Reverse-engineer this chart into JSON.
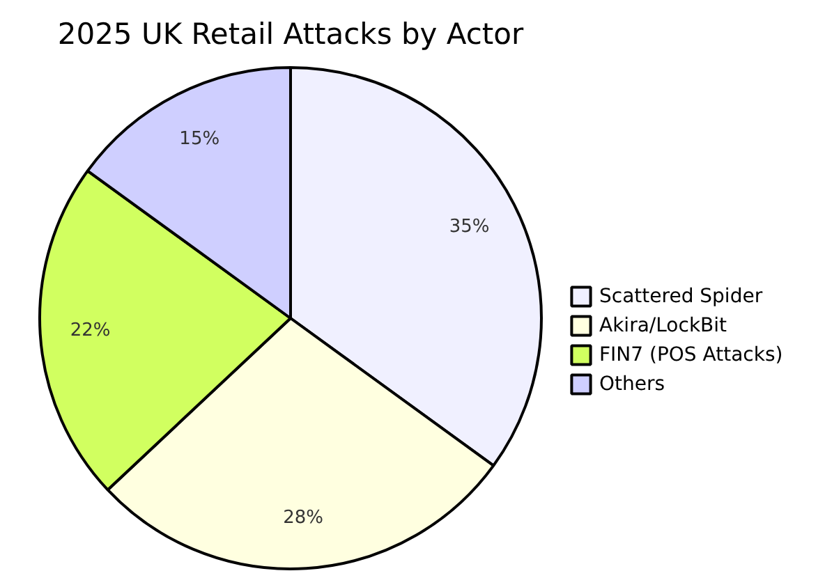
{
  "chart_data": {
    "type": "pie",
    "title": "2025 UK Retail Attacks by Actor",
    "categories": [
      "Scattered Spider",
      "Akira/LockBit",
      "FIN7 (POS Attacks)",
      "Others"
    ],
    "values": [
      35,
      28,
      22,
      15
    ],
    "colors": [
      "#f0f0ff",
      "#ffffe0",
      "#d1ff60",
      "#cfcfff"
    ],
    "value_labels": [
      "35%",
      "28%",
      "22%",
      "15%"
    ],
    "legend": "right"
  }
}
